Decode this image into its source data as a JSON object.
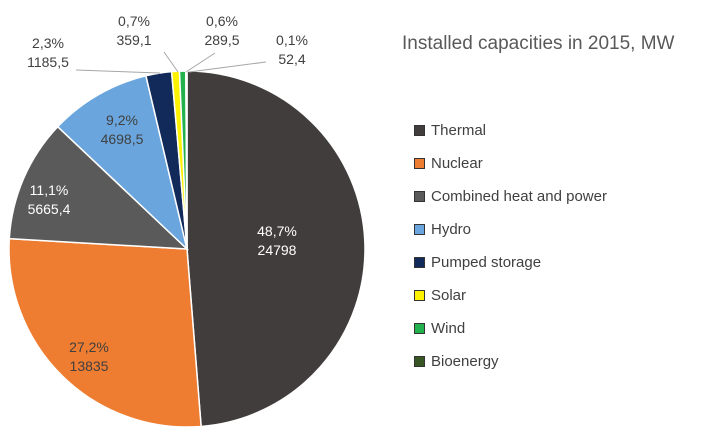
{
  "chart_data": {
    "type": "pie",
    "title": "Installed capacities in 2015, MW",
    "legend_position": "right",
    "slices": [
      {
        "name": "Thermal",
        "value": 24798,
        "percent_label": "48,7%",
        "value_label": "24798",
        "color": "#413d3c"
      },
      {
        "name": "Nuclear",
        "value": 13835,
        "percent_label": "27,2%",
        "value_label": "13835",
        "color": "#ee7d31"
      },
      {
        "name": "Combined heat and power",
        "value": 5665.4,
        "percent_label": "11,1%",
        "value_label": "5665,4",
        "color": "#5a5a5a"
      },
      {
        "name": "Hydro",
        "value": 4698.5,
        "percent_label": "9,2%",
        "value_label": "4698,5",
        "color": "#6aa6dd"
      },
      {
        "name": "Pumped storage",
        "value": 1185.5,
        "percent_label": "2,3%",
        "value_label": "1185,5",
        "color": "#112a5a"
      },
      {
        "name": "Solar",
        "value": 359.1,
        "percent_label": "0,7%",
        "value_label": "359,1",
        "color": "#fef200"
      },
      {
        "name": "Wind",
        "value": 289.5,
        "percent_label": "0,6%",
        "value_label": "289,5",
        "color": "#23b14d"
      },
      {
        "name": "Bioenergy",
        "value": 52.4,
        "percent_label": "0,1%",
        "value_label": "52,4",
        "color": "#375623"
      }
    ]
  }
}
